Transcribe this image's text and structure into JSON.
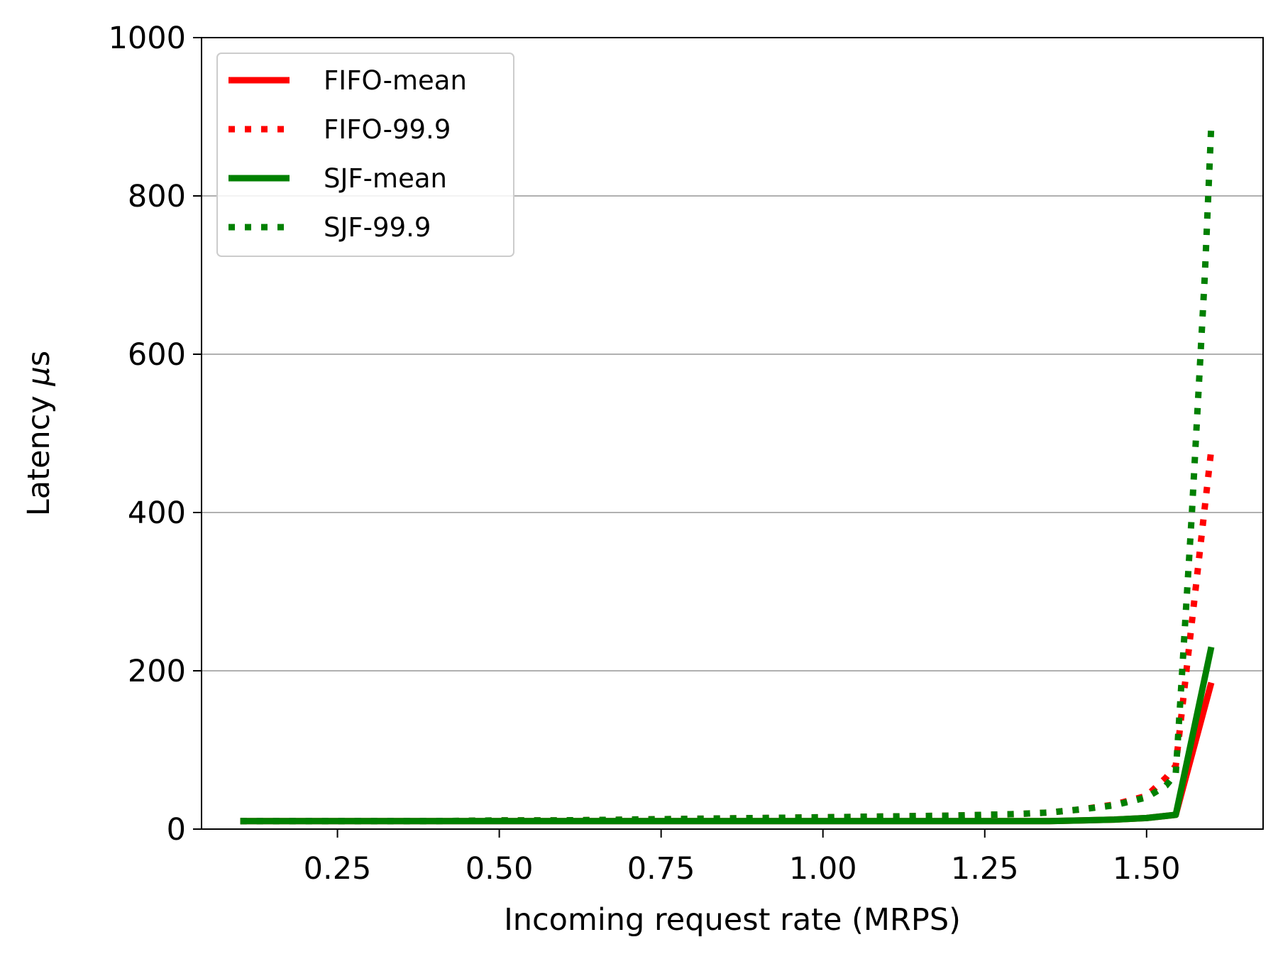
{
  "chart_data": {
    "type": "line",
    "xlabel": "Incoming request rate (MRPS)",
    "ylabel_text": "Latency ",
    "ylabel_mu": "μ",
    "ylabel_unit": "s",
    "xlim": [
      0.04,
      1.68
    ],
    "ylim": [
      0,
      1000
    ],
    "xticks": [
      {
        "value": 0.25,
        "label": "0.25"
      },
      {
        "value": 0.5,
        "label": "0.50"
      },
      {
        "value": 0.75,
        "label": "0.75"
      },
      {
        "value": 1.0,
        "label": "1.00"
      },
      {
        "value": 1.25,
        "label": "1.25"
      },
      {
        "value": 1.5,
        "label": "1.50"
      }
    ],
    "yticks": [
      {
        "value": 0,
        "label": "0"
      },
      {
        "value": 200,
        "label": "200"
      },
      {
        "value": 400,
        "label": "400"
      },
      {
        "value": 600,
        "label": "600"
      },
      {
        "value": 800,
        "label": "800"
      },
      {
        "value": 1000,
        "label": "1000"
      }
    ],
    "grid": "horizontal",
    "legend_position": "upper left",
    "series": [
      {
        "name": "FIFO-mean",
        "color": "#ff0000",
        "style": "solid",
        "points": [
          [
            0.1,
            10
          ],
          [
            0.2,
            10
          ],
          [
            0.3,
            10
          ],
          [
            0.4,
            10
          ],
          [
            0.5,
            10
          ],
          [
            0.6,
            10
          ],
          [
            0.7,
            10
          ],
          [
            0.8,
            10
          ],
          [
            0.9,
            10
          ],
          [
            1.0,
            10
          ],
          [
            1.1,
            10
          ],
          [
            1.2,
            10
          ],
          [
            1.3,
            10
          ],
          [
            1.35,
            10
          ],
          [
            1.4,
            11
          ],
          [
            1.45,
            12
          ],
          [
            1.5,
            14
          ],
          [
            1.545,
            18
          ],
          [
            1.6,
            185
          ]
        ]
      },
      {
        "name": "FIFO-99.9",
        "color": "#ff0000",
        "style": "dotted",
        "points": [
          [
            0.1,
            10
          ],
          [
            0.2,
            10
          ],
          [
            0.3,
            10
          ],
          [
            0.4,
            10
          ],
          [
            0.5,
            11
          ],
          [
            0.6,
            11
          ],
          [
            0.7,
            12
          ],
          [
            0.8,
            13
          ],
          [
            0.9,
            14
          ],
          [
            1.0,
            15
          ],
          [
            1.1,
            16
          ],
          [
            1.2,
            17
          ],
          [
            1.3,
            19
          ],
          [
            1.35,
            21
          ],
          [
            1.4,
            25
          ],
          [
            1.45,
            31
          ],
          [
            1.5,
            42
          ],
          [
            1.53,
            65
          ],
          [
            1.545,
            80
          ],
          [
            1.6,
            480
          ]
        ]
      },
      {
        "name": "SJF-mean",
        "color": "#008000",
        "style": "solid",
        "points": [
          [
            0.1,
            10
          ],
          [
            0.2,
            10
          ],
          [
            0.3,
            10
          ],
          [
            0.4,
            10
          ],
          [
            0.5,
            10
          ],
          [
            0.6,
            10
          ],
          [
            0.7,
            10
          ],
          [
            0.8,
            10
          ],
          [
            0.9,
            10
          ],
          [
            1.0,
            10
          ],
          [
            1.1,
            10
          ],
          [
            1.2,
            10
          ],
          [
            1.3,
            10
          ],
          [
            1.35,
            10
          ],
          [
            1.4,
            11
          ],
          [
            1.45,
            12
          ],
          [
            1.5,
            14
          ],
          [
            1.545,
            18
          ],
          [
            1.6,
            230
          ]
        ]
      },
      {
        "name": "SJF-99.9",
        "color": "#008000",
        "style": "dotted",
        "points": [
          [
            0.1,
            10
          ],
          [
            0.2,
            10
          ],
          [
            0.3,
            10
          ],
          [
            0.4,
            10
          ],
          [
            0.5,
            11
          ],
          [
            0.6,
            11
          ],
          [
            0.7,
            12
          ],
          [
            0.8,
            13
          ],
          [
            0.9,
            14
          ],
          [
            1.0,
            15
          ],
          [
            1.1,
            16
          ],
          [
            1.2,
            17
          ],
          [
            1.3,
            19
          ],
          [
            1.35,
            21
          ],
          [
            1.4,
            25
          ],
          [
            1.45,
            30
          ],
          [
            1.5,
            40
          ],
          [
            1.53,
            55
          ],
          [
            1.545,
            70
          ],
          [
            1.555,
            200
          ],
          [
            1.57,
            400
          ],
          [
            1.59,
            700
          ],
          [
            1.6,
            890
          ]
        ]
      }
    ]
  }
}
